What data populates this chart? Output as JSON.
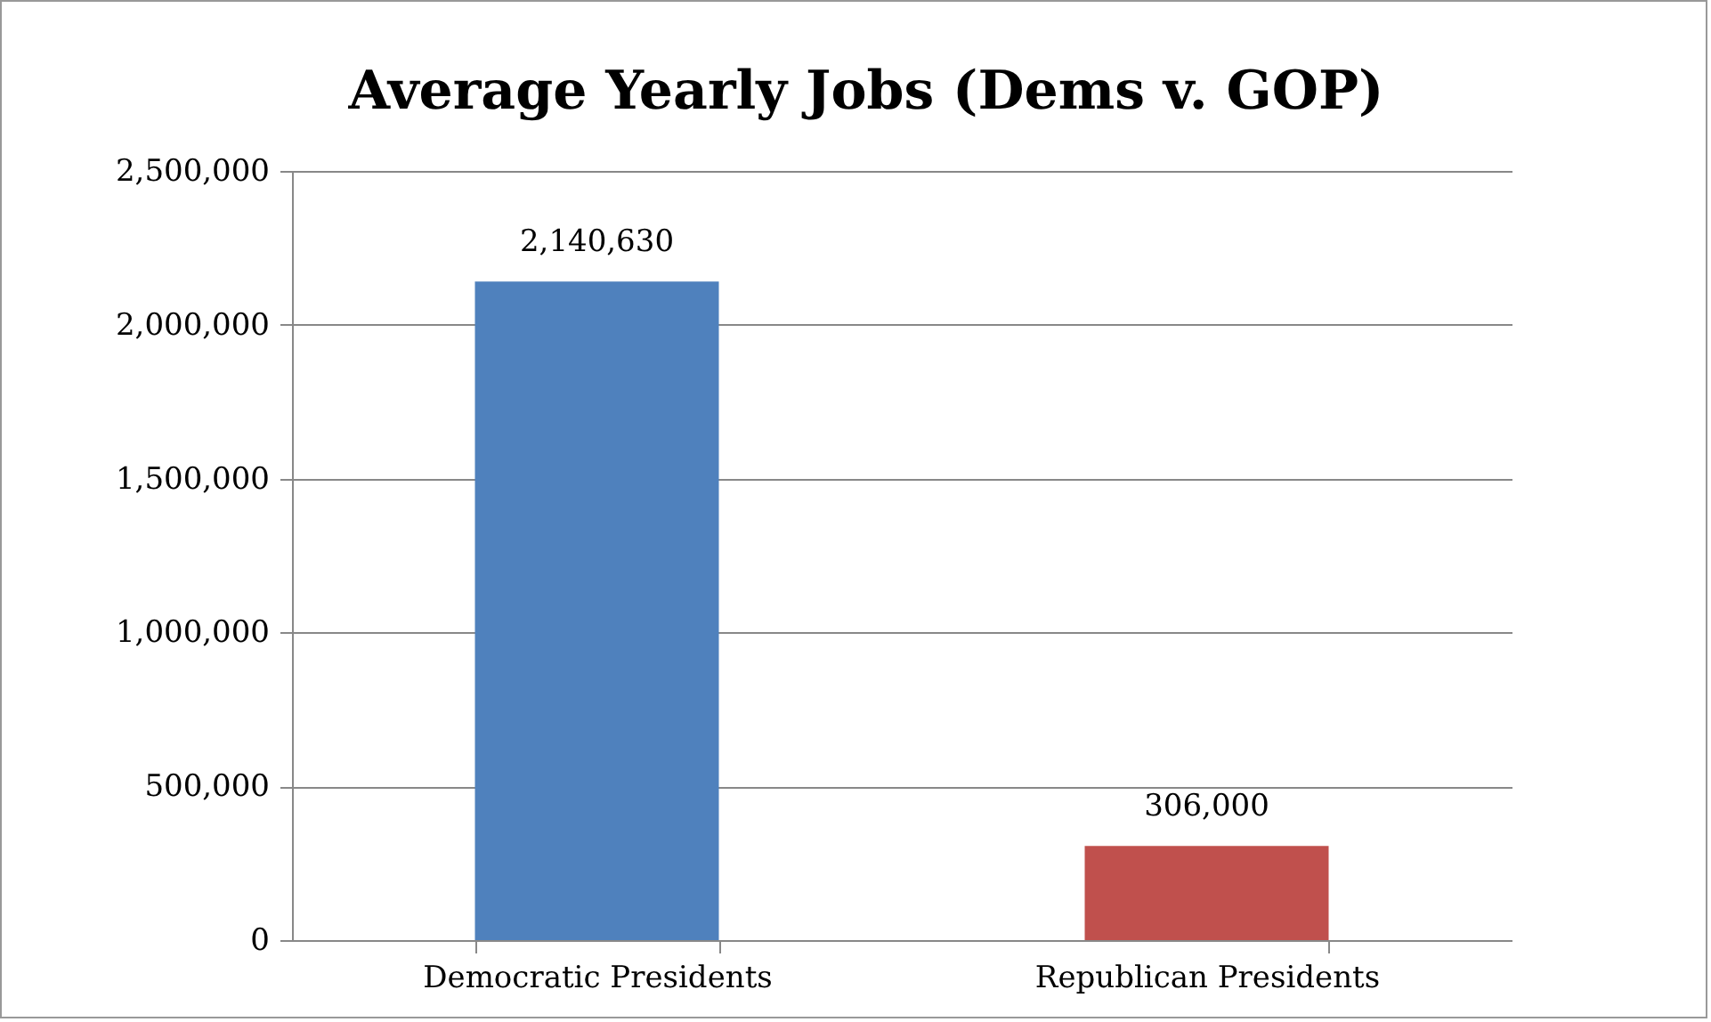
{
  "chart_data": {
    "type": "bar",
    "title": "Average Yearly Jobs (Dems v. GOP)",
    "categories": [
      "Democratic Presidents",
      "Republican Presidents"
    ],
    "values": [
      2140630,
      306000
    ],
    "colors": [
      "#4f81bd",
      "#c0504d"
    ],
    "value_labels": [
      "2,140,630",
      "306,000"
    ],
    "ylim": [
      0,
      2500000
    ],
    "yticks": [
      0,
      {
        "value": 500000,
        "label": "500,000"
      },
      {
        "value": 1000000,
        "label": "1,000,000"
      },
      {
        "value": 1500000,
        "label": "1,500,000"
      },
      {
        "value": 2000000,
        "label": "2,000,000"
      },
      {
        "value": 2500000,
        "label": "2,500,000"
      }
    ],
    "grid": "y"
  }
}
